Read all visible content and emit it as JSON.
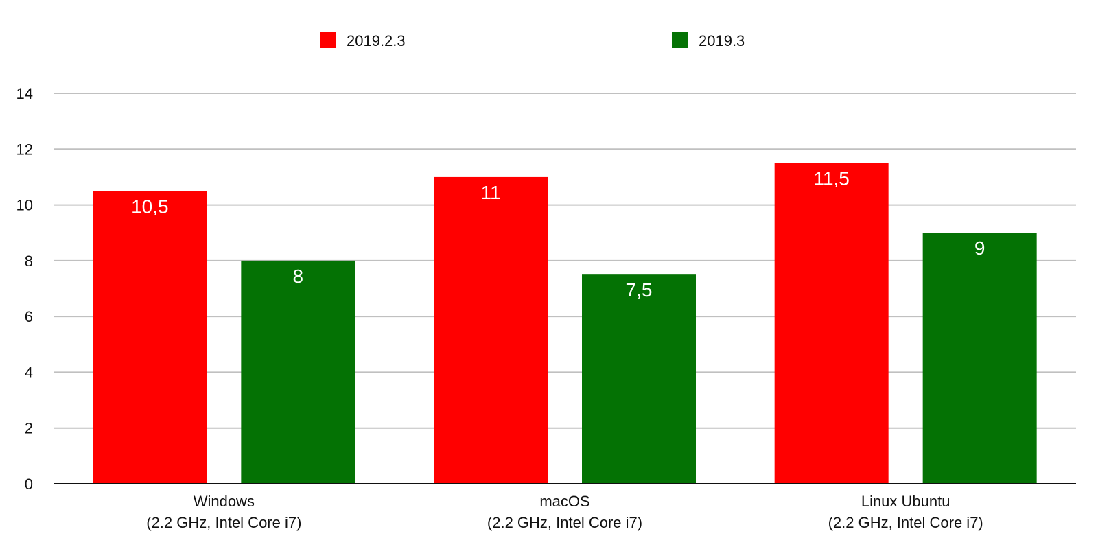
{
  "chart_data": {
    "type": "bar",
    "categories": [
      [
        "Windows",
        "(2.2 GHz, Intel Core i7)"
      ],
      [
        "macOS",
        "(2.2 GHz, Intel Core i7)"
      ],
      [
        "Linux Ubuntu",
        "(2.2 GHz, Intel Core i7)"
      ]
    ],
    "series": [
      {
        "name": "2019.2.3",
        "color": "#ff0000",
        "values": [
          10.5,
          11,
          11.5
        ],
        "labels": [
          "10,5",
          "11",
          "11,5"
        ]
      },
      {
        "name": "2019.3",
        "color": "#047204",
        "values": [
          8,
          7.5,
          9
        ],
        "labels": [
          "8",
          "7,5",
          "9"
        ]
      }
    ],
    "ylim": [
      0,
      14
    ],
    "yticks": [
      0,
      2,
      4,
      6,
      8,
      10,
      12,
      14
    ],
    "grid": true,
    "legend": "top",
    "title": "",
    "xlabel": "",
    "ylabel": ""
  }
}
